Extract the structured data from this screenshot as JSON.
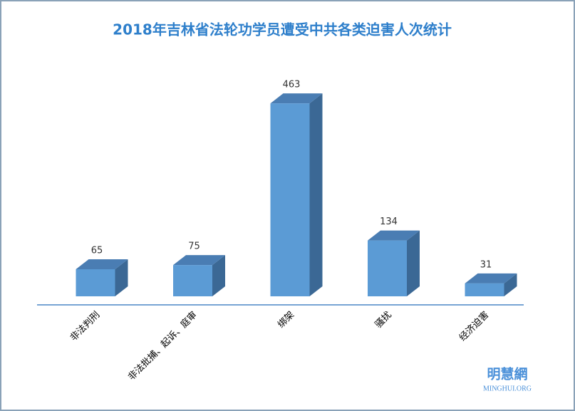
{
  "chart_data": {
    "type": "bar3d",
    "title": "2018年吉林省法轮功学员遭受中共各类迫害人次统计",
    "categories": [
      "非法判刑",
      "非法批捕、起诉、庭审",
      "绑架",
      "骚扰",
      "经济迫害"
    ],
    "values": [
      65,
      75,
      463,
      134,
      31
    ],
    "color": "#5b9bd5",
    "side_color": "#3b6895",
    "top_color": "#4a7db3"
  },
  "watermark": {
    "name": "明慧網",
    "site": "MINGHUI.ORG"
  }
}
